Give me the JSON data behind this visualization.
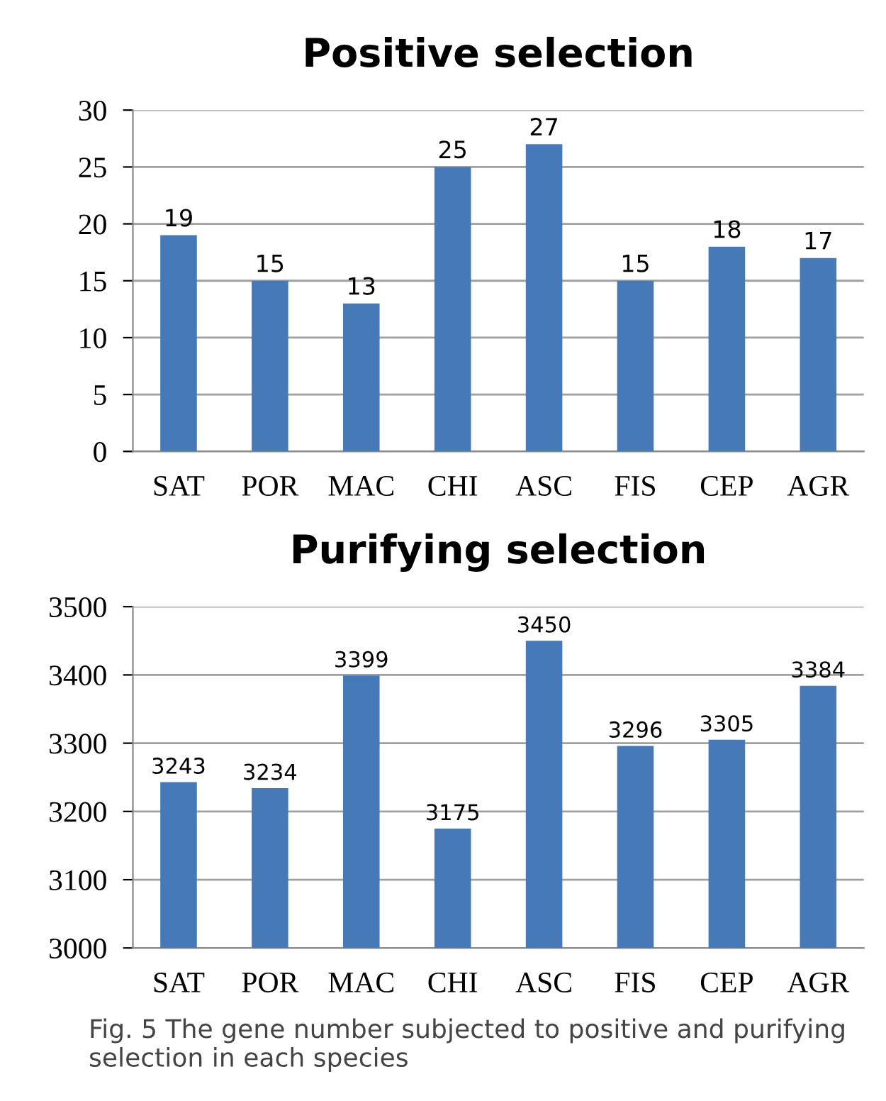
{
  "chart_data": [
    {
      "type": "bar",
      "title": "Positive selection",
      "categories": [
        "SAT",
        "POR",
        "MAC",
        "CHI",
        "ASC",
        "FIS",
        "CEP",
        "AGR"
      ],
      "values": [
        19,
        15,
        13,
        25,
        27,
        15,
        18,
        17
      ],
      "color": "#4579b8",
      "ylim": [
        0,
        30
      ],
      "yticks": [
        0,
        5,
        10,
        15,
        20,
        25,
        30
      ],
      "grid": "y",
      "data_labels": true
    },
    {
      "type": "bar",
      "title": "Purifying selection",
      "categories": [
        "SAT",
        "POR",
        "MAC",
        "CHI",
        "ASC",
        "FIS",
        "CEP",
        "AGR"
      ],
      "values": [
        3243,
        3234,
        3399,
        3175,
        3450,
        3296,
        3305,
        3384
      ],
      "color": "#4579b8",
      "ylim": [
        3000,
        3500
      ],
      "yticks": [
        3000,
        3100,
        3200,
        3300,
        3400,
        3500
      ],
      "grid": "y",
      "data_labels": true,
      "annotations": [
        "Fig. 5 The gene number subjected to positive and purifying selection in each species"
      ]
    }
  ]
}
